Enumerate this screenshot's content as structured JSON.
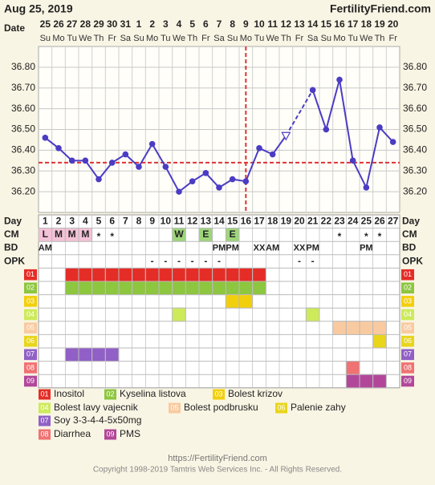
{
  "header": {
    "date": "Aug 25, 2019",
    "site": "FertilityFriend.com"
  },
  "chart_data": {
    "type": "line",
    "row_labels": {
      "date": "Date",
      "day": "Day",
      "cm": "CM",
      "bd": "BD",
      "opk": "OPK"
    },
    "dates": [
      25,
      26,
      27,
      28,
      29,
      30,
      31,
      1,
      2,
      3,
      4,
      5,
      6,
      7,
      8,
      9,
      10,
      11,
      12,
      13,
      14,
      15,
      16,
      17,
      18,
      19,
      20
    ],
    "weekdays": [
      "Su",
      "Mo",
      "Tu",
      "We",
      "Th",
      "Fr",
      "Sa",
      "Su",
      "Mo",
      "Tu",
      "We",
      "Th",
      "Fr",
      "Sa",
      "Su",
      "Mo",
      "Tu",
      "We",
      "Th",
      "Fr",
      "Sa",
      "Su",
      "Mo",
      "Tu",
      "We",
      "Th",
      "Fr"
    ],
    "x": [
      1,
      2,
      3,
      4,
      5,
      6,
      7,
      8,
      9,
      10,
      11,
      12,
      13,
      14,
      15,
      16,
      17,
      18,
      19,
      20,
      21,
      22,
      23,
      24,
      25,
      26,
      27
    ],
    "values": [
      36.46,
      36.41,
      36.35,
      36.35,
      36.26,
      36.34,
      36.38,
      36.32,
      36.43,
      36.32,
      36.2,
      36.25,
      36.29,
      36.22,
      36.26,
      36.25,
      36.41,
      36.38,
      36.47,
      null,
      36.69,
      36.5,
      36.74,
      36.35,
      36.22,
      36.51,
      36.44
    ],
    "color": "#4b3cc4",
    "coverline": 36.34,
    "ovulation_day": 16,
    "ylim": [
      36.1,
      36.9
    ],
    "yticks": [
      {
        "value": 36.2,
        "label": "36.20"
      },
      {
        "value": 36.3,
        "label": "36.30"
      },
      {
        "value": 36.4,
        "label": "36.40"
      },
      {
        "value": 36.5,
        "label": "36.50"
      },
      {
        "value": 36.6,
        "label": "36.60"
      },
      {
        "value": 36.7,
        "label": "36.70"
      },
      {
        "value": 36.8,
        "label": "36.80"
      }
    ],
    "grid": true,
    "cm": [
      "L",
      "M",
      "M",
      "M",
      "*",
      "*",
      null,
      null,
      null,
      null,
      "W",
      null,
      "E",
      null,
      "E",
      null,
      null,
      null,
      null,
      null,
      null,
      null,
      "*",
      null,
      "*",
      "*",
      null
    ],
    "bd": [
      "AM",
      null,
      null,
      null,
      null,
      null,
      null,
      null,
      null,
      null,
      null,
      null,
      null,
      "PM",
      "PM",
      null,
      "XX",
      "AM",
      null,
      "XX",
      "PM",
      null,
      null,
      null,
      "PM",
      null,
      null
    ],
    "opk": [
      null,
      null,
      null,
      null,
      null,
      null,
      null,
      null,
      "-",
      "-",
      "-",
      "-",
      "-",
      "-",
      null,
      null,
      null,
      null,
      null,
      "-",
      "-",
      null,
      null,
      null,
      null,
      null,
      null
    ],
    "symptoms": [
      {
        "code": "01",
        "name": "Inositol",
        "color": "#e52d27",
        "days": [
          3,
          4,
          5,
          6,
          7,
          8,
          9,
          10,
          11,
          12,
          13,
          14,
          15,
          16,
          17
        ]
      },
      {
        "code": "02",
        "name": "Kyselina listova",
        "color": "#8dc63f",
        "days": [
          3,
          4,
          5,
          6,
          7,
          8,
          9,
          10,
          11,
          12,
          13,
          14,
          15,
          16,
          17
        ]
      },
      {
        "code": "03",
        "name": "Bolest krizov",
        "color": "#f2cf0c",
        "days": [
          15,
          16
        ]
      },
      {
        "code": "04",
        "name": "Bolest lavy vajecnik",
        "color": "#cdea5a",
        "days": [
          11,
          21
        ]
      },
      {
        "code": "05",
        "name": "Bolest podbrusku",
        "color": "#f9caa0",
        "days": [
          23,
          24,
          25,
          26
        ]
      },
      {
        "code": "06",
        "name": "Palenie zahy",
        "color": "#e8d51c",
        "days": [
          26
        ]
      },
      {
        "code": "07",
        "name": "Soy 3-3-4-4-5x50mg",
        "color": "#9160c6",
        "days": [
          3,
          4,
          5,
          6
        ]
      },
      {
        "code": "08",
        "name": "Diarrhea",
        "color": "#f07272",
        "days": [
          24
        ]
      },
      {
        "code": "09",
        "name": "PMS",
        "color": "#b2479a",
        "days": [
          24,
          25,
          26
        ]
      }
    ]
  },
  "footer": {
    "url": "https://FertilityFriend.com",
    "copyright": "Copyright 1998-2019 Tamtris Web Services Inc. - All Rights Reserved."
  }
}
